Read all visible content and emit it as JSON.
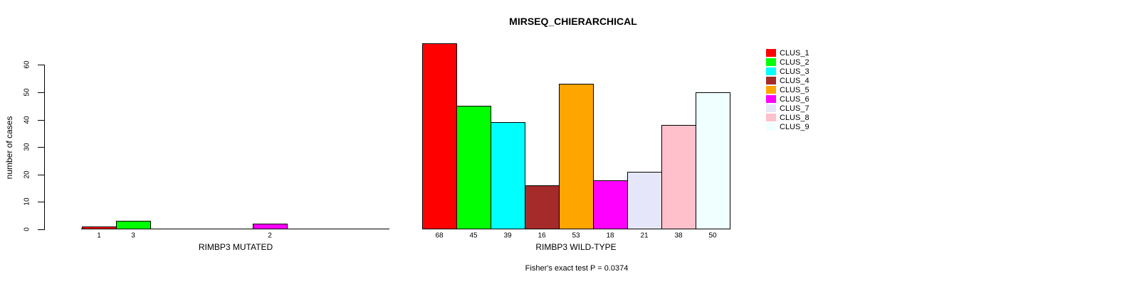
{
  "chart_data": {
    "type": "bar",
    "title": "MIRSEQ_CHIERARCHICAL",
    "ylabel": "number of cases",
    "ylim": [
      0,
      68
    ],
    "yticks": [
      0,
      10,
      20,
      30,
      40,
      50,
      60
    ],
    "grid": false,
    "legend_position": "top-right",
    "categories": [
      "CLUS_1",
      "CLUS_2",
      "CLUS_3",
      "CLUS_4",
      "CLUS_5",
      "CLUS_6",
      "CLUS_7",
      "CLUS_8",
      "CLUS_9"
    ],
    "colors": [
      "#FF0000",
      "#00FF00",
      "#00FFFF",
      "#A52A2A",
      "#FFA500",
      "#FF00FF",
      "#E6E6FA",
      "#FFC0CB",
      "#F0FFFF"
    ],
    "panels": [
      {
        "xlabel": "RIMBP3 MUTATED",
        "values": [
          1,
          3,
          0,
          0,
          0,
          2,
          0,
          0,
          0
        ],
        "bar_labels": [
          "1",
          "3",
          "",
          "",
          "",
          "2",
          "",
          "",
          ""
        ]
      },
      {
        "xlabel": "RIMBP3 WILD-TYPE",
        "values": [
          68,
          45,
          39,
          16,
          53,
          18,
          21,
          38,
          50
        ],
        "bar_labels": [
          "68",
          "45",
          "39",
          "16",
          "53",
          "18",
          "21",
          "38",
          "50"
        ]
      }
    ],
    "annotation": "Fisher's exact test P = 0.0374"
  }
}
